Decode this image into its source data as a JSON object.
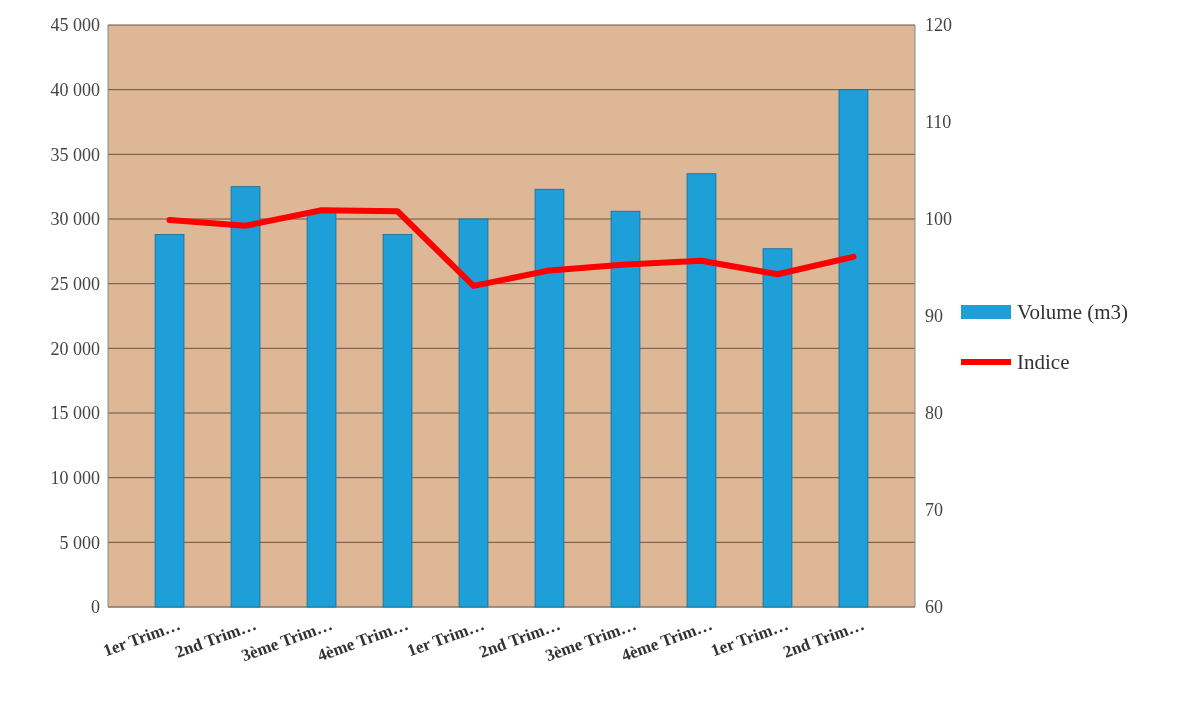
{
  "chart_data": {
    "type": "bar",
    "categories": [
      "1er Trim…",
      "2nd Trim…",
      "3ème Trim…",
      "4ème Trim…",
      "1er Trim…",
      "2nd Trim…",
      "3ème Trim…",
      "4ème Trim…",
      "1er Trim…",
      "2nd Trim…"
    ],
    "series": [
      {
        "name": "Volume (m3)",
        "color": "#1e9fd8",
        "values": [
          28800,
          32500,
          30600,
          28800,
          30000,
          32300,
          30600,
          33500,
          27700,
          40000
        ]
      },
      {
        "name": "Indice",
        "type": "line",
        "axis": "y2",
        "color": "#ff0000",
        "values": [
          99.9,
          99.3,
          100.9,
          100.8,
          93.1,
          94.7,
          95.3,
          95.7,
          94.3,
          96.1
        ]
      }
    ],
    "ylim": [
      0,
      45000
    ],
    "yticks": [
      {
        "value": 0,
        "label": "0"
      },
      {
        "value": 5000,
        "label": "5 000"
      },
      {
        "value": 10000,
        "label": "10 000"
      },
      {
        "value": 15000,
        "label": "15 000"
      },
      {
        "value": 20000,
        "label": "20 000"
      },
      {
        "value": 25000,
        "label": "25 000"
      },
      {
        "value": 30000,
        "label": "30 000"
      },
      {
        "value": 35000,
        "label": "35 000"
      },
      {
        "value": 40000,
        "label": "40 000"
      },
      {
        "value": 45000,
        "label": "45 000"
      }
    ],
    "y2lim": [
      60,
      120
    ],
    "y2ticks": [
      60,
      70,
      80,
      90,
      100,
      110,
      120
    ],
    "grid": "y",
    "legend": "right",
    "marker": "none",
    "line_style": "solid"
  }
}
